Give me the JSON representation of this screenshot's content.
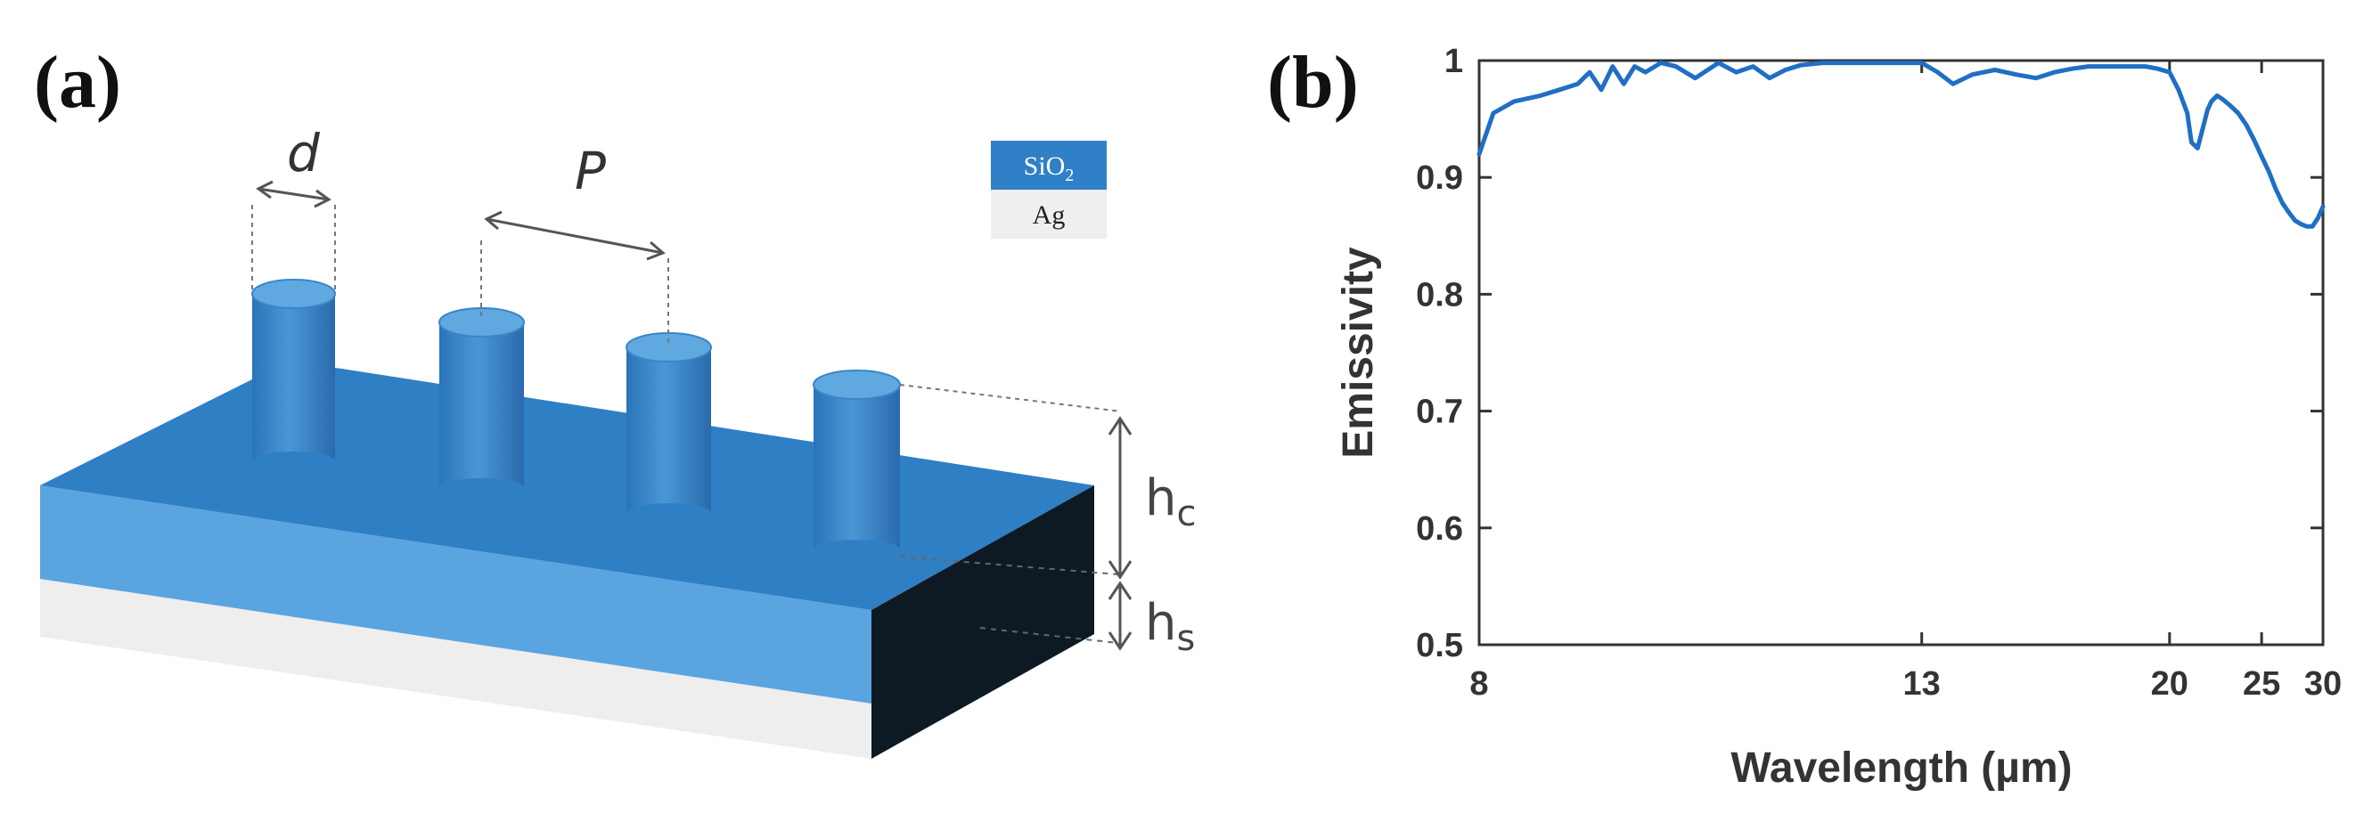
{
  "panel_a": {
    "label": "(a)",
    "dim_d": "d",
    "dim_p": "P",
    "dim_hc": "h",
    "dim_hc_sub": "c",
    "dim_hs": "h",
    "dim_hs_sub": "s",
    "legend": [
      {
        "name": "SiO",
        "sub": "2",
        "color": "#2f80c6"
      },
      {
        "name": "Ag",
        "sub": "",
        "color": "#efefef"
      }
    ]
  },
  "panel_b": {
    "label": "(b)"
  },
  "chart_data": {
    "type": "line",
    "title": "",
    "xlabel": "Wavelength (µm)",
    "ylabel": "Emissivity",
    "xscale": "reciprocal",
    "xlim": [
      8,
      30
    ],
    "ylim": [
      0.5,
      1.0
    ],
    "xticks": [
      8,
      13,
      20,
      25,
      30
    ],
    "yticks": [
      0.5,
      0.6,
      0.7,
      0.8,
      0.9,
      1.0
    ],
    "ytick_labels": [
      "0.5",
      "0.6",
      "0.7",
      "0.8",
      "0.9",
      "1"
    ],
    "grid": false,
    "line_color": "#1f6fc4",
    "series": [
      {
        "x": [
          8.0,
          8.1,
          8.25,
          8.45,
          8.6,
          8.75,
          8.85,
          8.95,
          9.05,
          9.15,
          9.25,
          9.35,
          9.5,
          9.65,
          9.85,
          10.1,
          10.3,
          10.5,
          10.7,
          10.9,
          11.1,
          11.4,
          11.8,
          12.2,
          12.6,
          13.0,
          13.3,
          13.6,
          14.0,
          14.5,
          15.0,
          15.5,
          16.0,
          16.5,
          17.0,
          17.5,
          18.0,
          18.5,
          19.0,
          19.5,
          20.0,
          20.4,
          20.8,
          21.0,
          21.3,
          21.6,
          21.8,
          22.0,
          22.3,
          22.6,
          23.0,
          23.5,
          24.0,
          24.5,
          25.0,
          25.5,
          26.0,
          26.5,
          27.0,
          27.5,
          28.0,
          28.5,
          29.0,
          29.5,
          30.0
        ],
        "y": [
          0.92,
          0.955,
          0.965,
          0.97,
          0.975,
          0.98,
          0.99,
          0.975,
          0.995,
          0.98,
          0.995,
          0.99,
          0.998,
          0.995,
          0.985,
          0.998,
          0.99,
          0.995,
          0.985,
          0.992,
          0.996,
          0.998,
          0.998,
          0.998,
          0.998,
          0.998,
          0.99,
          0.98,
          0.988,
          0.992,
          0.988,
          0.985,
          0.99,
          0.993,
          0.995,
          0.995,
          0.995,
          0.995,
          0.995,
          0.993,
          0.99,
          0.975,
          0.955,
          0.93,
          0.925,
          0.945,
          0.958,
          0.965,
          0.97,
          0.967,
          0.962,
          0.955,
          0.945,
          0.932,
          0.918,
          0.905,
          0.89,
          0.878,
          0.87,
          0.863,
          0.86,
          0.858,
          0.858,
          0.865,
          0.875
        ]
      }
    ]
  }
}
